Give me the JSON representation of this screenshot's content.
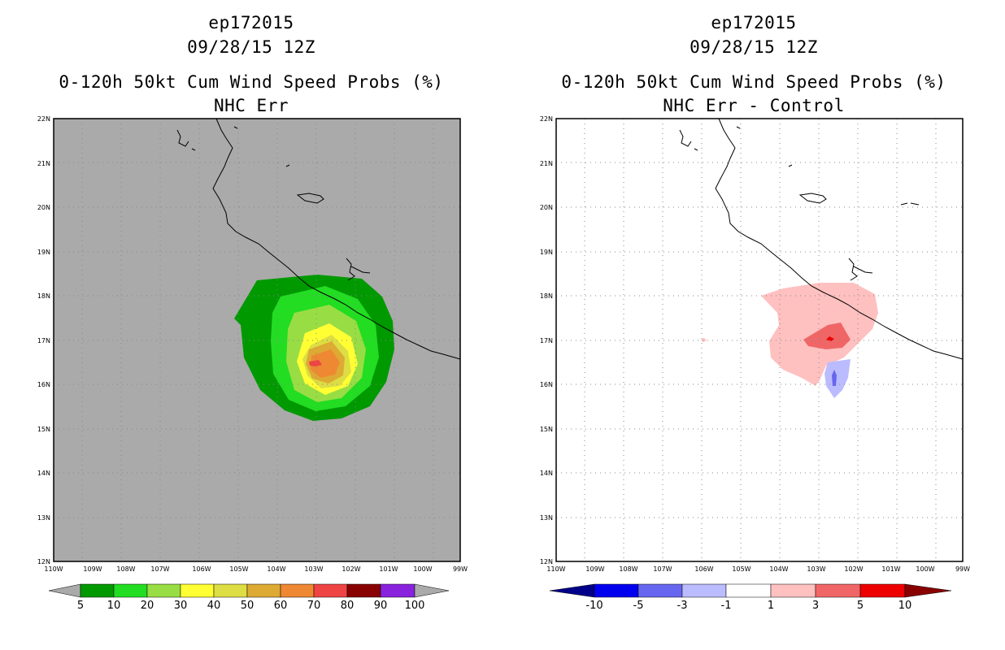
{
  "left": {
    "storm_id": "ep172015",
    "datetime": "09/28/15 12Z",
    "product": "0-120h 50kt Cum Wind Speed Probs (%)",
    "subtitle": "NHC Err",
    "colorbar": {
      "labels": [
        "5",
        "10",
        "20",
        "30",
        "40",
        "50",
        "60",
        "70",
        "80",
        "90",
        "100"
      ],
      "colors": [
        "#009900",
        "#22dd22",
        "#99dd44",
        "#ffff33",
        "#dddd44",
        "#ddaa33",
        "#ee8833",
        "#ee4444",
        "#880000",
        "#8822dd"
      ]
    }
  },
  "right": {
    "storm_id": "ep172015",
    "datetime": "09/28/15 12Z",
    "product": "0-120h 50kt Cum Wind Speed Probs (%)",
    "subtitle": "NHC Err - Control",
    "colorbar": {
      "labels": [
        "-10",
        "-5",
        "-3",
        "-1",
        "1",
        "3",
        "5",
        "10"
      ],
      "colors": [
        "#000088",
        "#0000ee",
        "#6666ee",
        "#bbbbff",
        "#ffffff",
        "#ffc0c0",
        "#f06666",
        "#ee0000",
        "#880000"
      ]
    }
  },
  "axes": {
    "lat_labels": [
      "22N",
      "21N",
      "20N",
      "19N",
      "18N",
      "17N",
      "16N",
      "15N",
      "14N",
      "13N",
      "12N"
    ],
    "lon_labels": [
      "110W",
      "109W",
      "108W",
      "107W",
      "106W",
      "105W",
      "104W",
      "103W",
      "102W",
      "101W",
      "100W",
      "99W"
    ]
  },
  "colors": {
    "land_mask": "#aaaaaa",
    "coast": "#000000",
    "grid": "#bbbbbb"
  }
}
